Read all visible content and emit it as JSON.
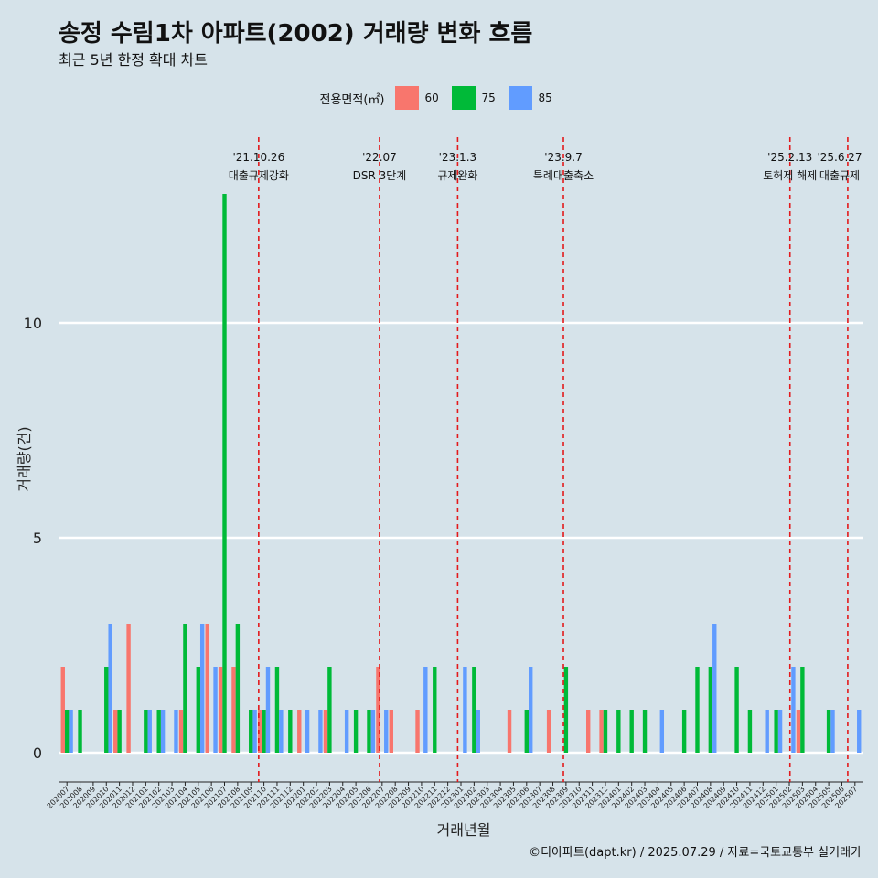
{
  "title": "송정 수림1차 아파트(2002) 거래량 변화 흐름",
  "subtitle": "최근 5년 한정 확대 차트",
  "caption": "©디아파트(dapt.kr) / 2025.07.29 / 자료=국토교통부 실거래가",
  "colors": {
    "background": "#d6e3ea",
    "grid": "#ffffff",
    "event_line": "#e31a1c",
    "s60": "#f8766d",
    "s75": "#00ba38",
    "s85": "#619cff"
  },
  "legend": {
    "title": "전용면적(㎡)",
    "items": [
      {
        "label": "60",
        "color": "#f8766d"
      },
      {
        "label": "75",
        "color": "#00ba38"
      },
      {
        "label": "85",
        "color": "#619cff"
      }
    ]
  },
  "chart_data": {
    "type": "bar",
    "xlabel": "거래년월",
    "ylabel": "거래량(건)",
    "ylim": [
      0,
      13.5
    ],
    "yticks": [
      0,
      5,
      10
    ],
    "grid": true,
    "legend_position": "top",
    "categories": [
      "202007",
      "202008",
      "202009",
      "202010",
      "202011",
      "202012",
      "202101",
      "202102",
      "202103",
      "202104",
      "202105",
      "202106",
      "202107",
      "202108",
      "202109",
      "202110",
      "202111",
      "202112",
      "202201",
      "202202",
      "202203",
      "202204",
      "202205",
      "202206",
      "202207",
      "202208",
      "202209",
      "202210",
      "202211",
      "202212",
      "202301",
      "202302",
      "202303",
      "202304",
      "202305",
      "202306",
      "202307",
      "202308",
      "202309",
      "202310",
      "202311",
      "202312",
      "202401",
      "202402",
      "202403",
      "202404",
      "202405",
      "202406",
      "202407",
      "202408",
      "202409",
      "202410",
      "202411",
      "202412",
      "202501",
      "202502",
      "202503",
      "202504",
      "202505",
      "202506",
      "202507"
    ],
    "series": [
      {
        "name": "60",
        "color": "#f8766d",
        "values": [
          2,
          0,
          0,
          0,
          1,
          3,
          0,
          0,
          0,
          1,
          0,
          3,
          2,
          2,
          0,
          1,
          0,
          0,
          1,
          0,
          1,
          0,
          0,
          0,
          2,
          1,
          0,
          1,
          0,
          0,
          0,
          0,
          0,
          0,
          1,
          0,
          0,
          1,
          0,
          0,
          1,
          1,
          0,
          0,
          0,
          0,
          0,
          0,
          0,
          0,
          0,
          0,
          0,
          0,
          0,
          0,
          1,
          0,
          0,
          0,
          0
        ]
      },
      {
        "name": "75",
        "color": "#00ba38",
        "values": [
          1,
          1,
          0,
          2,
          1,
          0,
          1,
          1,
          0,
          3,
          2,
          0,
          13,
          3,
          1,
          1,
          2,
          1,
          0,
          0,
          2,
          0,
          1,
          1,
          0,
          0,
          0,
          0,
          2,
          0,
          0,
          2,
          0,
          0,
          0,
          1,
          0,
          0,
          2,
          0,
          0,
          1,
          1,
          1,
          1,
          0,
          0,
          1,
          2,
          2,
          0,
          2,
          1,
          0,
          1,
          0,
          2,
          0,
          1,
          0,
          0
        ]
      },
      {
        "name": "85",
        "color": "#619cff",
        "values": [
          1,
          0,
          0,
          3,
          0,
          0,
          1,
          1,
          1,
          0,
          3,
          2,
          0,
          0,
          1,
          2,
          1,
          0,
          1,
          1,
          0,
          1,
          0,
          1,
          1,
          0,
          0,
          2,
          0,
          0,
          2,
          1,
          0,
          0,
          0,
          2,
          0,
          0,
          0,
          0,
          0,
          0,
          0,
          0,
          0,
          1,
          0,
          0,
          0,
          3,
          0,
          0,
          0,
          1,
          1,
          2,
          0,
          0,
          1,
          0,
          1
        ]
      }
    ],
    "events": [
      {
        "after_index": 15.1,
        "date": "'21.10.26",
        "label": "대출규제강화"
      },
      {
        "after_index": 24.3,
        "date": "'22.07",
        "label": "DSR 3단계"
      },
      {
        "after_index": 30.25,
        "date": "'23.1.3",
        "label": "규제완화"
      },
      {
        "after_index": 38.3,
        "date": "'23.9.7",
        "label": "특례대출축소"
      },
      {
        "after_index": 55.55,
        "date": "'25.2.13",
        "label": "토허제 해제"
      },
      {
        "after_index": 59.95,
        "date": "'25.6.27",
        "label": "대출규제"
      }
    ]
  }
}
